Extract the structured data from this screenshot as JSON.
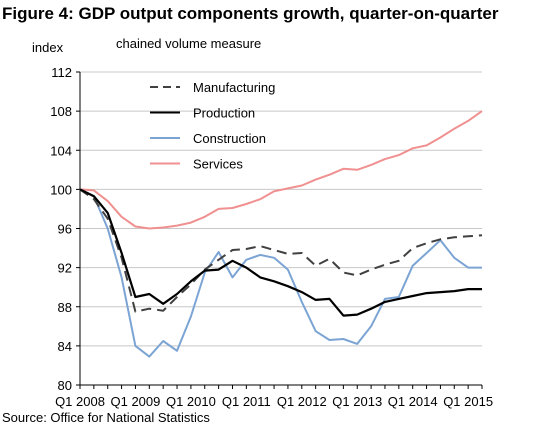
{
  "figure_title": "Figure 4: GDP output components growth, quarter-on-quarter",
  "source_note": "Source: Office for National Statistics",
  "chart_data": {
    "type": "line",
    "title": "Figure 4: GDP output components growth, quarter-on-quarter",
    "subtitle": "chained volume measure",
    "ylabel": "index",
    "xlabel": "",
    "ylim": [
      80,
      112
    ],
    "yticks": [
      80,
      84,
      88,
      92,
      96,
      100,
      104,
      108,
      112
    ],
    "grid": "horizontal",
    "legend_position": "top-left",
    "x": [
      "Q1 2008",
      "Q2 2008",
      "Q3 2008",
      "Q4 2008",
      "Q1 2009",
      "Q2 2009",
      "Q3 2009",
      "Q4 2009",
      "Q1 2010",
      "Q2 2010",
      "Q3 2010",
      "Q4 2010",
      "Q1 2011",
      "Q2 2011",
      "Q3 2011",
      "Q4 2011",
      "Q1 2012",
      "Q2 2012",
      "Q3 2012",
      "Q4 2012",
      "Q1 2013",
      "Q2 2013",
      "Q3 2013",
      "Q4 2013",
      "Q1 2014",
      "Q2 2014",
      "Q3 2014",
      "Q4 2014",
      "Q1 2015",
      "Q2 2015"
    ],
    "xtick_labels": [
      "Q1 2008",
      "Q1 2009",
      "Q1 2010",
      "Q1 2011",
      "Q1 2012",
      "Q1 2013",
      "Q1 2014",
      "Q1 2015"
    ],
    "series": [
      {
        "name": "Manufacturing",
        "color": "#404040",
        "dash": "dashed",
        "values": [
          100,
          99.0,
          97.0,
          93.0,
          87.5,
          87.8,
          87.6,
          89.0,
          90.3,
          91.8,
          92.8,
          93.8,
          93.9,
          94.2,
          93.8,
          93.4,
          93.5,
          92.2,
          92.9,
          91.5,
          91.2,
          91.8,
          92.3,
          92.7,
          94.0,
          94.5,
          94.9,
          95.1,
          95.2,
          95.3
        ]
      },
      {
        "name": "Production",
        "color": "#000000",
        "dash": "solid",
        "values": [
          100,
          99.3,
          97.6,
          93.5,
          89.0,
          89.3,
          88.3,
          89.3,
          90.6,
          91.7,
          91.8,
          92.7,
          92.0,
          91.0,
          90.6,
          90.1,
          89.5,
          88.7,
          88.8,
          87.1,
          87.2,
          87.8,
          88.5,
          88.8,
          89.1,
          89.4,
          89.5,
          89.6,
          89.8,
          89.8
        ]
      },
      {
        "name": "Construction",
        "color": "#7ba4d4",
        "dash": "solid",
        "values": [
          100,
          99.3,
          96.0,
          91.0,
          84.0,
          82.9,
          84.5,
          83.5,
          87.0,
          91.5,
          93.6,
          91.0,
          92.8,
          93.3,
          93.0,
          91.8,
          88.5,
          85.5,
          84.6,
          84.7,
          84.2,
          86.0,
          88.8,
          89.0,
          92.2,
          93.5,
          94.8,
          93.0,
          92.0,
          92.0
        ]
      },
      {
        "name": "Services",
        "color": "#f09090",
        "dash": "solid",
        "values": [
          100,
          99.9,
          98.8,
          97.2,
          96.2,
          96.0,
          96.1,
          96.3,
          96.6,
          97.2,
          98.0,
          98.1,
          98.5,
          99.0,
          99.8,
          100.1,
          100.4,
          101.0,
          101.5,
          102.1,
          102.0,
          102.5,
          103.1,
          103.5,
          104.2,
          104.5,
          105.3,
          106.2,
          107.0,
          108.0
        ]
      }
    ]
  }
}
